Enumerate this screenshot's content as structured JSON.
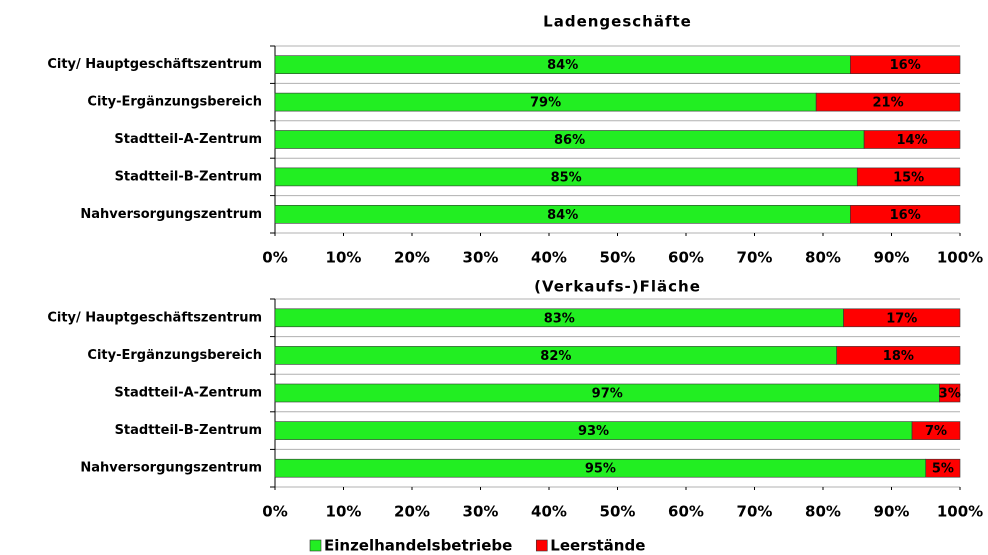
{
  "chart_data": [
    {
      "type": "stacked-bar-horizontal",
      "title": "Ladengeschäfte",
      "categories": [
        "City/ Hauptgeschäftszentrum",
        "City-Ergänzungsbereich",
        "Stadtteil-A-Zentrum",
        "Stadtteil-B-Zentrum",
        "Nahversorgungszentrum"
      ],
      "series": [
        {
          "name": "Einzelhandelsbetriebe",
          "color": "#22ee22",
          "values": [
            84,
            79,
            86,
            85,
            84
          ],
          "value_labels": [
            "84%",
            "79%",
            "86%",
            "85%",
            "84%"
          ]
        },
        {
          "name": "Leerstände",
          "color": "#ff0000",
          "values": [
            16,
            21,
            14,
            15,
            16
          ],
          "value_labels": [
            "16%",
            "21%",
            "14%",
            "15%",
            "16%"
          ]
        }
      ],
      "xlim": [
        0,
        100
      ],
      "xticks": [
        {
          "value": 0,
          "label": "0%"
        },
        {
          "value": 10,
          "label": "10%"
        },
        {
          "value": 20,
          "label": "20%"
        },
        {
          "value": 30,
          "label": "30%"
        },
        {
          "value": 40,
          "label": "40%"
        },
        {
          "value": 50,
          "label": "50%"
        },
        {
          "value": 60,
          "label": "60%"
        },
        {
          "value": 70,
          "label": "70%"
        },
        {
          "value": 80,
          "label": "80%"
        },
        {
          "value": 90,
          "label": "90%"
        },
        {
          "value": 100,
          "label": "100%"
        }
      ],
      "legend": "bottom"
    },
    {
      "type": "stacked-bar-horizontal",
      "title": "(Verkaufs-)Fläche",
      "categories": [
        "City/ Hauptgeschäftszentrum",
        "City-Ergänzungsbereich",
        "Stadtteil-A-Zentrum",
        "Stadtteil-B-Zentrum",
        "Nahversorgungszentrum"
      ],
      "series": [
        {
          "name": "Einzelhandelsbetriebe",
          "color": "#22ee22",
          "values": [
            83,
            82,
            97,
            93,
            95
          ],
          "value_labels": [
            "83%",
            "82%",
            "97%",
            "93%",
            "95%"
          ]
        },
        {
          "name": "Leerstände",
          "color": "#ff0000",
          "values": [
            17,
            18,
            3,
            7,
            5
          ],
          "value_labels": [
            "17%",
            "18%",
            "3%",
            "7%",
            "5%"
          ]
        }
      ],
      "xlim": [
        0,
        100
      ],
      "xticks": [
        {
          "value": 0,
          "label": "0%"
        },
        {
          "value": 10,
          "label": "10%"
        },
        {
          "value": 20,
          "label": "20%"
        },
        {
          "value": 30,
          "label": "30%"
        },
        {
          "value": 40,
          "label": "40%"
        },
        {
          "value": 50,
          "label": "50%"
        },
        {
          "value": 60,
          "label": "60%"
        },
        {
          "value": 70,
          "label": "70%"
        },
        {
          "value": 80,
          "label": "80%"
        },
        {
          "value": 90,
          "label": "90%"
        },
        {
          "value": 100,
          "label": "100%"
        }
      ],
      "legend": "bottom"
    }
  ]
}
